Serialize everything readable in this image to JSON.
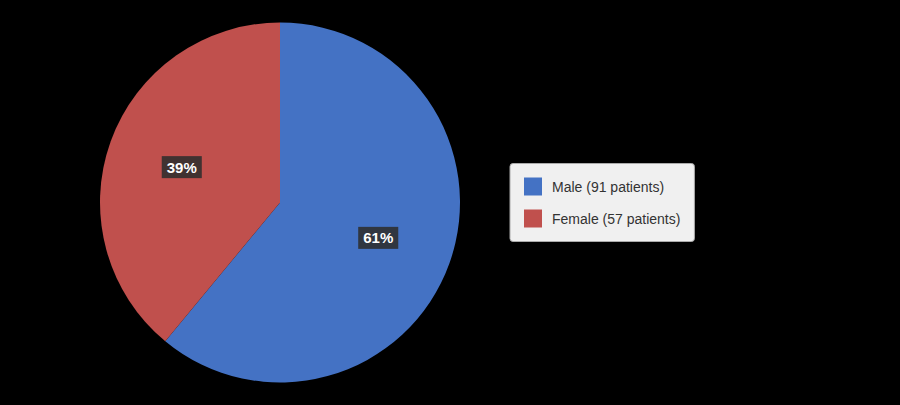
{
  "chart_data": {
    "type": "pie",
    "categories": [
      "Male (91 patients)",
      "Female (57 patients)"
    ],
    "values": [
      61,
      39
    ],
    "value_labels": [
      "61%",
      "39%"
    ],
    "colors": [
      "#4472C4",
      "#C0504D"
    ],
    "data_labels": true,
    "legend": "right"
  }
}
